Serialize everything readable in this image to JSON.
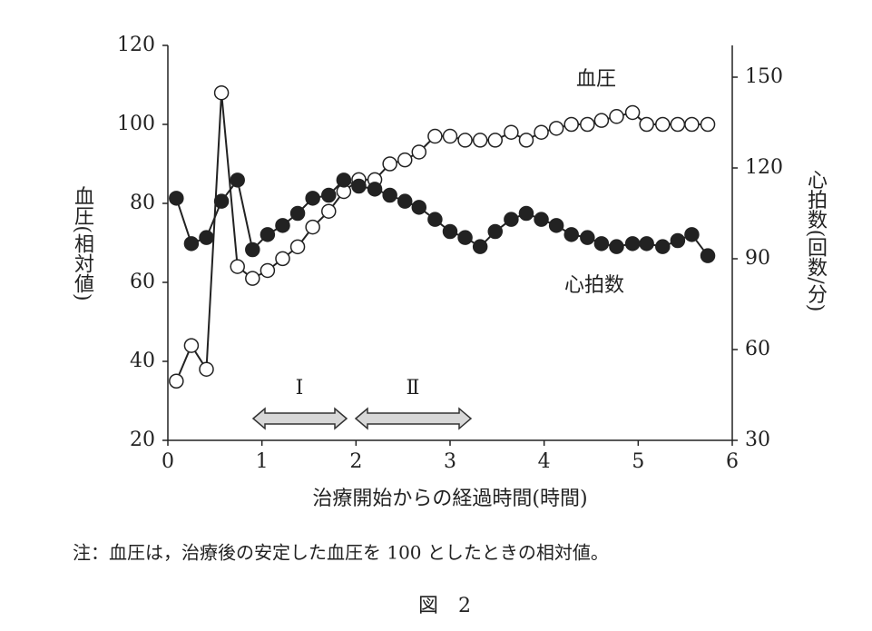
{
  "chart_data": {
    "type": "line",
    "x_label": "治療開始からの経過時間(時間)",
    "y_label": "血圧(相対値)",
    "y2_label": "心拍数(回数/分)",
    "x": [
      0.09,
      0.25,
      0.41,
      0.57,
      0.74,
      0.9,
      1.06,
      1.22,
      1.38,
      1.54,
      1.71,
      1.87,
      2.03,
      2.2,
      2.36,
      2.52,
      2.67,
      2.84,
      3.0,
      3.16,
      3.32,
      3.48,
      3.65,
      3.81,
      3.97,
      4.13,
      4.29,
      4.46,
      4.61,
      4.77,
      4.94,
      5.09,
      5.26,
      5.42,
      5.57,
      5.74
    ],
    "series": [
      {
        "name": "血圧",
        "color": "#222222",
        "marker_fill": "#ffffff",
        "values": [
          35,
          44,
          38,
          108,
          64,
          61,
          63,
          66,
          69,
          74,
          78,
          83,
          86,
          86,
          90,
          91,
          93,
          97,
          97,
          96,
          96,
          96,
          98,
          96,
          98,
          99,
          100,
          100,
          101,
          102,
          103,
          100,
          100,
          100,
          100,
          100
        ]
      },
      {
        "name": "心拍数",
        "color": "#222222",
        "marker_fill": "#222222",
        "axis": "y2",
        "values": [
          110,
          95,
          97,
          109,
          116,
          93,
          98,
          101,
          105,
          110,
          111,
          116,
          114,
          113,
          111,
          109,
          107,
          103,
          99,
          97,
          94,
          99,
          103,
          105,
          103,
          101,
          98,
          97,
          95,
          94,
          95,
          95,
          94,
          96,
          98,
          91
        ]
      }
    ],
    "xlim": [
      0,
      6
    ],
    "xticks": [
      0,
      1,
      2,
      3,
      4,
      5,
      6
    ],
    "ylim": [
      20,
      120
    ],
    "yticks": [
      20,
      40,
      60,
      80,
      100,
      120
    ],
    "y2lim": [
      30,
      160.5
    ],
    "y2ticks": [
      30,
      60,
      90,
      120,
      150
    ],
    "annotations": [
      "Ⅰ",
      "Ⅱ"
    ],
    "note": "注：血圧は，治療後の安定した血圧を 100 としたときの相対値。",
    "caption": "図　2"
  }
}
